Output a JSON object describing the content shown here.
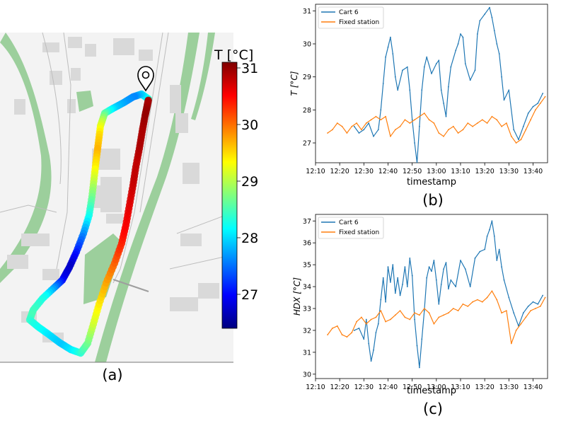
{
  "panels": {
    "a": {
      "label": "(a)"
    },
    "b": {
      "label": "(b)"
    },
    "c": {
      "label": "(c)"
    }
  },
  "colors": {
    "cart": "#1f77b4",
    "fixed": "#ff7f0e",
    "route_colormap": [
      "#00007f",
      "#0000ff",
      "#007fff",
      "#00ffff",
      "#7fff7f",
      "#ffff00",
      "#ff7f00",
      "#ff0000",
      "#7f0000"
    ],
    "map_background": "#f3f3f3",
    "map_green": "#9ccf9c",
    "map_building": "#d9d9d9"
  },
  "map_panel": {
    "marker_icon": "map-pin-icon",
    "colorbar": {
      "title": "T [°C]",
      "min": 26.4,
      "max": 31.1,
      "ticks": [
        "27",
        "28",
        "29",
        "30",
        "31"
      ],
      "tick_values": [
        27,
        28,
        29,
        30,
        31
      ]
    },
    "route_temperatures": [
      28.4,
      28.0,
      27.6,
      27.7,
      27.9,
      28.3,
      29.0,
      29.5,
      29.7,
      29.4,
      29.0,
      28.6,
      28.2,
      27.6,
      27.1,
      26.7,
      26.9,
      27.6,
      28.2,
      28.4,
      28.5,
      28.3,
      28.2,
      28.0,
      27.9,
      28.1,
      28.4,
      28.7,
      29.1,
      29.4,
      29.7,
      30.0,
      30.3,
      30.5,
      30.6,
      30.7,
      30.8,
      30.8,
      30.9,
      30.9,
      31.0,
      31.0,
      30.9
    ]
  },
  "chart_data": [
    {
      "type": "line",
      "panel": "b",
      "xlabel": "timestamp",
      "ylabel": "T [°C]",
      "x_ticks": [
        "12:10",
        "12:20",
        "12:30",
        "12:40",
        "12:50",
        "13:00",
        "13:10",
        "13:20",
        "13:30",
        "13:40"
      ],
      "y_ticks": [
        27,
        28,
        29,
        30,
        31
      ],
      "xlim": [
        "12:10",
        "13:46"
      ],
      "ylim": [
        26.4,
        31.2
      ],
      "legend": "top-left",
      "series": [
        {
          "name": "Cart 6",
          "x": [
            "12:26",
            "12:28",
            "12:30",
            "12:32",
            "12:34",
            "12:36",
            "12:37",
            "12:38",
            "12:39",
            "12:40",
            "12:41",
            "12:42",
            "12:43",
            "12:44",
            "12:46",
            "12:48",
            "12:49",
            "12:50",
            "12:51",
            "12:52",
            "12:53",
            "12:54",
            "12:55",
            "12:56",
            "12:58",
            "13:00",
            "13:01",
            "13:02",
            "13:03",
            "13:04",
            "13:05",
            "13:06",
            "13:08",
            "13:09",
            "13:10",
            "13:11",
            "13:12",
            "13:14",
            "13:16",
            "13:17",
            "13:18",
            "13:20",
            "13:22",
            "13:23",
            "13:24",
            "13:25",
            "13:26",
            "13:27",
            "13:28",
            "13:30",
            "13:32",
            "13:34",
            "13:36",
            "13:38",
            "13:40",
            "13:42",
            "13:44"
          ],
          "values": [
            27.5,
            27.3,
            27.4,
            27.6,
            27.2,
            27.4,
            28.0,
            28.8,
            29.6,
            29.9,
            30.2,
            29.7,
            29.0,
            28.6,
            29.2,
            29.3,
            28.6,
            27.7,
            27.0,
            26.4,
            27.5,
            28.6,
            29.3,
            29.6,
            29.1,
            29.4,
            29.5,
            28.6,
            28.2,
            27.8,
            28.7,
            29.3,
            29.8,
            30.0,
            30.3,
            30.2,
            29.4,
            28.9,
            29.2,
            30.3,
            30.7,
            30.9,
            31.1,
            30.8,
            30.4,
            30.0,
            29.7,
            29.0,
            28.3,
            28.6,
            27.4,
            27.1,
            27.5,
            27.9,
            28.1,
            28.2,
            28.5
          ]
        },
        {
          "name": "Fixed station",
          "x": [
            "12:15",
            "12:17",
            "12:19",
            "12:21",
            "12:23",
            "12:25",
            "12:27",
            "12:29",
            "12:31",
            "12:33",
            "12:35",
            "12:37",
            "12:39",
            "12:41",
            "12:43",
            "12:45",
            "12:47",
            "12:49",
            "12:51",
            "12:53",
            "12:55",
            "12:57",
            "12:59",
            "13:01",
            "13:03",
            "13:05",
            "13:07",
            "13:09",
            "13:11",
            "13:13",
            "13:15",
            "13:17",
            "13:19",
            "13:21",
            "13:23",
            "13:25",
            "13:27",
            "13:29",
            "13:31",
            "13:33",
            "13:35",
            "13:37",
            "13:39",
            "13:41",
            "13:43",
            "13:45"
          ],
          "values": [
            27.3,
            27.4,
            27.6,
            27.5,
            27.3,
            27.5,
            27.6,
            27.4,
            27.6,
            27.7,
            27.8,
            27.7,
            27.8,
            27.2,
            27.4,
            27.5,
            27.7,
            27.6,
            27.7,
            27.8,
            27.9,
            27.7,
            27.6,
            27.3,
            27.2,
            27.4,
            27.5,
            27.3,
            27.4,
            27.6,
            27.5,
            27.6,
            27.7,
            27.6,
            27.8,
            27.7,
            27.5,
            27.6,
            27.2,
            27.0,
            27.1,
            27.4,
            27.7,
            28.0,
            28.2,
            28.4
          ]
        }
      ]
    },
    {
      "type": "line",
      "panel": "c",
      "xlabel": "timestamp",
      "ylabel": "HDX [°C]",
      "x_ticks": [
        "12:10",
        "12:20",
        "12:30",
        "12:40",
        "12:50",
        "13:00",
        "13:10",
        "13:20",
        "13:30",
        "13:40"
      ],
      "y_ticks": [
        30,
        31,
        32,
        33,
        34,
        35,
        36,
        37
      ],
      "xlim": [
        "12:10",
        "13:46"
      ],
      "ylim": [
        29.8,
        37.3
      ],
      "legend": "top-left",
      "series": [
        {
          "name": "Cart 6",
          "x": [
            "12:26",
            "12:28",
            "12:30",
            "12:31",
            "12:32",
            "12:33",
            "12:34",
            "12:35",
            "12:36",
            "12:37",
            "12:38",
            "12:39",
            "12:40",
            "12:41",
            "12:42",
            "12:43",
            "12:44",
            "12:45",
            "12:46",
            "12:47",
            "12:48",
            "12:49",
            "12:50",
            "12:51",
            "12:52",
            "12:53",
            "12:54",
            "12:55",
            "12:56",
            "12:57",
            "12:58",
            "12:59",
            "13:00",
            "13:01",
            "13:02",
            "13:03",
            "13:04",
            "13:05",
            "13:06",
            "13:08",
            "13:10",
            "13:12",
            "13:14",
            "13:16",
            "13:18",
            "13:20",
            "13:21",
            "13:22",
            "13:23",
            "13:24",
            "13:25",
            "13:26",
            "13:27",
            "13:28",
            "13:30",
            "13:32",
            "13:34",
            "13:36",
            "13:38",
            "13:40",
            "13:42",
            "13:44"
          ],
          "values": [
            32.0,
            32.1,
            31.6,
            32.5,
            31.4,
            30.6,
            31.1,
            31.9,
            32.3,
            33.4,
            34.4,
            33.3,
            34.9,
            34.2,
            35.0,
            33.7,
            34.4,
            33.6,
            34.1,
            34.9,
            34.0,
            35.3,
            34.5,
            32.5,
            31.3,
            30.3,
            31.6,
            32.9,
            34.4,
            34.9,
            34.7,
            35.2,
            34.3,
            33.2,
            34.1,
            34.8,
            35.1,
            33.9,
            34.3,
            34.0,
            35.2,
            34.8,
            34.0,
            35.3,
            35.6,
            35.7,
            36.3,
            36.6,
            37.0,
            36.3,
            35.2,
            35.7,
            34.9,
            34.3,
            33.5,
            32.8,
            32.2,
            32.8,
            33.1,
            33.3,
            33.2,
            33.6
          ]
        },
        {
          "name": "Fixed station",
          "x": [
            "12:15",
            "12:17",
            "12:19",
            "12:21",
            "12:23",
            "12:25",
            "12:27",
            "12:29",
            "12:31",
            "12:33",
            "12:35",
            "12:37",
            "12:39",
            "12:41",
            "12:43",
            "12:45",
            "12:47",
            "12:49",
            "12:51",
            "12:53",
            "12:55",
            "12:57",
            "12:59",
            "13:01",
            "13:03",
            "13:05",
            "13:07",
            "13:09",
            "13:11",
            "13:13",
            "13:15",
            "13:17",
            "13:19",
            "13:21",
            "13:23",
            "13:25",
            "13:27",
            "13:29",
            "13:31",
            "13:33",
            "13:35",
            "13:37",
            "13:39",
            "13:41",
            "13:43",
            "13:45"
          ],
          "values": [
            31.8,
            32.1,
            32.2,
            31.8,
            31.7,
            31.9,
            32.4,
            32.6,
            32.3,
            32.5,
            32.6,
            32.9,
            32.4,
            32.5,
            32.7,
            32.9,
            32.6,
            32.5,
            32.8,
            32.7,
            33.0,
            32.8,
            32.3,
            32.6,
            32.7,
            32.8,
            33.0,
            32.9,
            33.2,
            33.1,
            33.3,
            33.4,
            33.3,
            33.5,
            33.8,
            33.4,
            32.8,
            32.9,
            31.4,
            32.0,
            32.3,
            32.6,
            32.9,
            33.0,
            33.1,
            33.5
          ]
        }
      ]
    }
  ]
}
